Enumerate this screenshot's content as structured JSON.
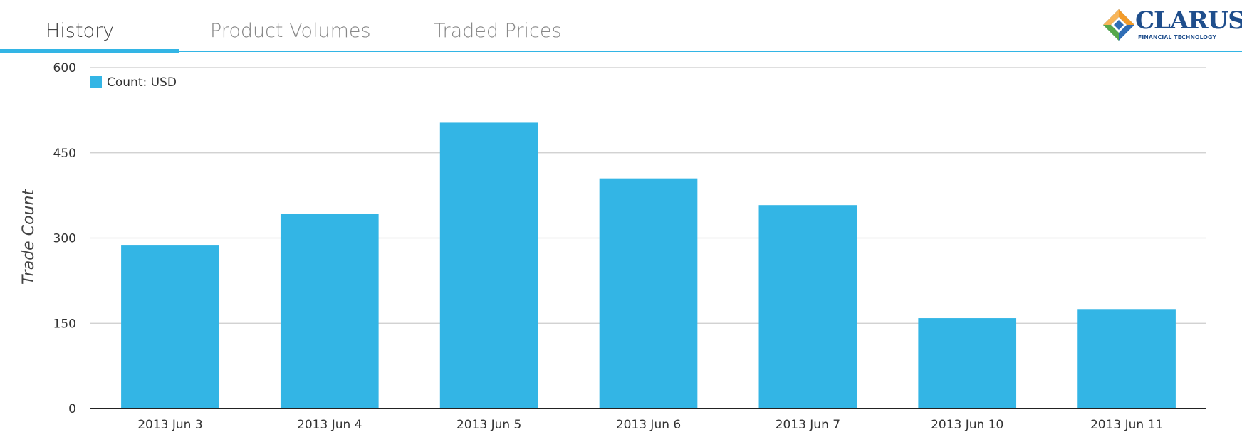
{
  "tabs": [
    {
      "label": "History",
      "active": true
    },
    {
      "label": "Product Volumes",
      "active": false
    },
    {
      "label": "Traded Prices",
      "active": false
    }
  ],
  "logo": {
    "text": "CLARUS",
    "subtext": "FINANCIAL TECHNOLOGY",
    "colors": {
      "primary": "#1f4e8c",
      "orange": "#f39c2a",
      "green": "#57a84a",
      "blue": "#2f6db5"
    }
  },
  "colors": {
    "accent": "#33b5e5",
    "bar": "#33b5e5",
    "grid": "#cccccc",
    "axis": "#222222",
    "text": "#333333"
  },
  "chart_data": {
    "type": "bar",
    "categories": [
      "2013 Jun 3",
      "2013 Jun 4",
      "2013 Jun 5",
      "2013 Jun 6",
      "2013 Jun 7",
      "2013 Jun 10",
      "2013 Jun 11"
    ],
    "series": [
      {
        "name": "Count: USD",
        "values": [
          288,
          343,
          503,
          405,
          358,
          159,
          175
        ]
      }
    ],
    "ylabel": "Trade Count",
    "xlabel": "",
    "ylim": [
      0,
      600
    ],
    "yticks": [
      0,
      150,
      300,
      450,
      600
    ],
    "grid": true,
    "legend_position": "top-left"
  }
}
